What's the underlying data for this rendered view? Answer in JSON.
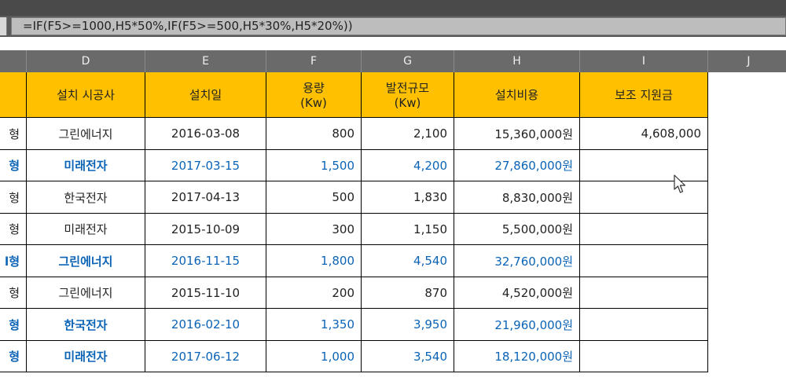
{
  "formula_bar": {
    "formula": "=IF(F5>=1000,H5*50%,IF(F5>=500,H5*30%,H5*20%))"
  },
  "columns": [
    "D",
    "E",
    "F",
    "G",
    "H",
    "I",
    "J"
  ],
  "headers": {
    "type_partial": "",
    "installer": "설치 시공사",
    "install_date": "설치일",
    "capacity_line1": "용량",
    "capacity_line2": "(Kw)",
    "scale_line1": "발전규모",
    "scale_line2": "(Kw)",
    "cost": "설치비용",
    "subsidy": "보조 지원금"
  },
  "rows": [
    {
      "type": "형",
      "installer": "그린에너지",
      "date": "2016-03-08",
      "capacity": "800",
      "scale": "2,100",
      "cost": "15,360,000원",
      "subsidy": "4,608,000",
      "highlight": false
    },
    {
      "type": "형",
      "installer": "미래전자",
      "date": "2017-03-15",
      "capacity": "1,500",
      "scale": "4,200",
      "cost": "27,860,000원",
      "subsidy": "",
      "highlight": true
    },
    {
      "type": "형",
      "installer": "한국전자",
      "date": "2017-04-13",
      "capacity": "500",
      "scale": "1,830",
      "cost": "8,830,000원",
      "subsidy": "",
      "highlight": false
    },
    {
      "type": "형",
      "installer": "미래전자",
      "date": "2015-10-09",
      "capacity": "300",
      "scale": "1,150",
      "cost": "5,500,000원",
      "subsidy": "",
      "highlight": false
    },
    {
      "type": "l형",
      "installer": "그린에너지",
      "date": "2016-11-15",
      "capacity": "1,800",
      "scale": "4,540",
      "cost": "32,760,000원",
      "subsidy": "",
      "highlight": true
    },
    {
      "type": "형",
      "installer": "그린에너지",
      "date": "2015-11-10",
      "capacity": "200",
      "scale": "870",
      "cost": "4,520,000원",
      "subsidy": "",
      "highlight": false
    },
    {
      "type": "형",
      "installer": "한국전자",
      "date": "2016-02-10",
      "capacity": "1,350",
      "scale": "3,950",
      "cost": "21,960,000원",
      "subsidy": "",
      "highlight": true
    },
    {
      "type": "형",
      "installer": "미래전자",
      "date": "2017-06-12",
      "capacity": "1,000",
      "scale": "3,540",
      "cost": "18,120,000원",
      "subsidy": "",
      "highlight": true
    }
  ],
  "colors": {
    "header_fill": "#ffc000",
    "highlight_text": "#0b63b6"
  },
  "icons": {
    "cursor": "mouse-pointer-icon"
  }
}
